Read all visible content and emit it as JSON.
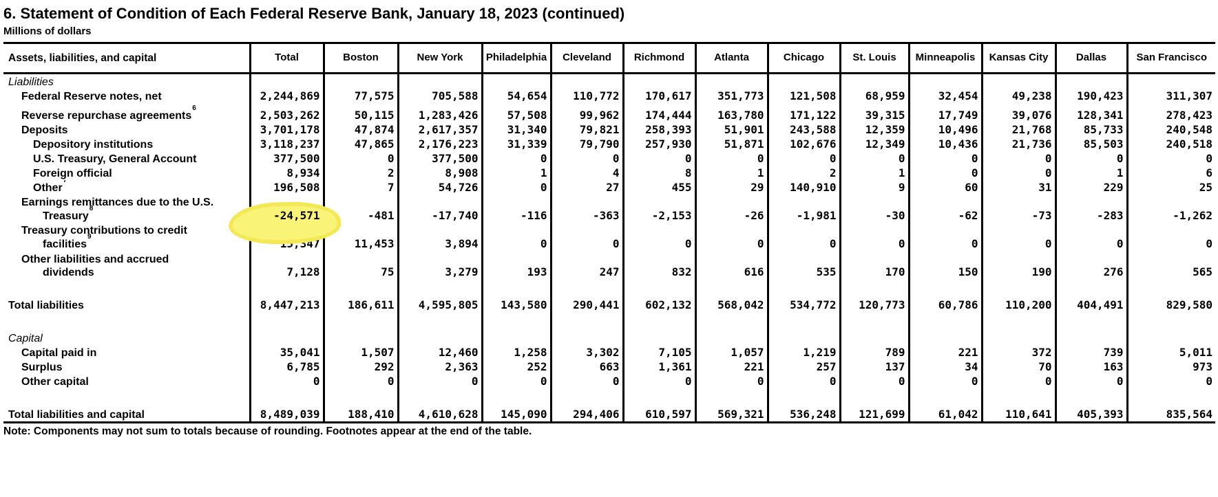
{
  "title": "6. Statement of Condition of Each Federal Reserve Bank, January 18, 2023 (continued)",
  "subtitle": "Millions of dollars",
  "note": "Note: Components may not sum to totals because of rounding. Footnotes appear at the end of the table.",
  "highlight": {
    "color": "#f9f478",
    "description": "hand-drawn yellow marker circle around the Total value of the Earnings remittances row",
    "highlighted_value": "-24,571",
    "row": "Earnings remittances due to the U.S. Treasury",
    "column": "Total"
  },
  "table": {
    "stub_header": "Assets, liabilities, and capital",
    "columns": [
      "Total",
      "Boston",
      "New York",
      "Philadelphia",
      "Cleveland",
      "Richmond",
      "Atlanta",
      "Chicago",
      "St. Louis",
      "Minneapolis",
      "Kansas City",
      "Dallas",
      "San Francisco"
    ],
    "rows": [
      {
        "type": "section",
        "label": "Liabilities"
      },
      {
        "type": "row",
        "indent": 1,
        "label": "Federal Reserve notes, net",
        "values": [
          "2,244,869",
          "77,575",
          "705,588",
          "54,654",
          "110,772",
          "170,617",
          "351,773",
          "121,508",
          "68,959",
          "32,454",
          "49,238",
          "190,423",
          "311,307"
        ]
      },
      {
        "type": "row",
        "indent": 1,
        "tall": true,
        "label": "Reverse repurchase agreements",
        "sup": "6",
        "values": [
          "2,503,262",
          "50,115",
          "1,283,426",
          "57,508",
          "99,962",
          "174,444",
          "163,780",
          "171,122",
          "39,315",
          "17,749",
          "39,076",
          "128,341",
          "278,423"
        ]
      },
      {
        "type": "row",
        "indent": 1,
        "label": "Deposits",
        "values": [
          "3,701,178",
          "47,874",
          "2,617,357",
          "31,340",
          "79,821",
          "258,393",
          "51,901",
          "243,588",
          "12,359",
          "10,496",
          "21,768",
          "85,733",
          "240,548"
        ]
      },
      {
        "type": "row",
        "indent": 2,
        "label": "Depository institutions",
        "values": [
          "3,118,237",
          "47,865",
          "2,176,223",
          "31,339",
          "79,790",
          "257,930",
          "51,871",
          "102,676",
          "12,349",
          "10,436",
          "21,736",
          "85,503",
          "240,518"
        ]
      },
      {
        "type": "row",
        "indent": 2,
        "label": "U.S. Treasury, General Account",
        "values": [
          "377,500",
          "0",
          "377,500",
          "0",
          "0",
          "0",
          "0",
          "0",
          "0",
          "0",
          "0",
          "0",
          "0"
        ]
      },
      {
        "type": "row",
        "indent": 2,
        "label": "Foreign official",
        "values": [
          "8,934",
          "2",
          "8,908",
          "1",
          "4",
          "8",
          "1",
          "2",
          "1",
          "0",
          "0",
          "1",
          "6"
        ]
      },
      {
        "type": "row",
        "indent": 2,
        "label": "Other",
        "sup": "7",
        "values": [
          "196,508",
          "7",
          "54,726",
          "0",
          "27",
          "455",
          "29",
          "140,910",
          "9",
          "60",
          "31",
          "229",
          "25"
        ]
      },
      {
        "type": "row2",
        "indent": 1,
        "label": "Earnings remittances due to the U.S.",
        "label2": "Treasury",
        "sup2": "8",
        "highlight": 0,
        "values": [
          "-24,571",
          "-481",
          "-17,740",
          "-116",
          "-363",
          "-2,153",
          "-26",
          "-1,981",
          "-30",
          "-62",
          "-73",
          "-283",
          "-1,262"
        ]
      },
      {
        "type": "row2",
        "indent": 1,
        "label": "Treasury contributions to credit",
        "label2": "facilities",
        "sup2": "9",
        "values": [
          "15,347",
          "11,453",
          "3,894",
          "0",
          "0",
          "0",
          "0",
          "0",
          "0",
          "0",
          "0",
          "0",
          "0"
        ]
      },
      {
        "type": "row2",
        "indent": 1,
        "label": "Other liabilities and accrued",
        "label2": "dividends",
        "values": [
          "7,128",
          "75",
          "3,279",
          "193",
          "247",
          "832",
          "616",
          "535",
          "170",
          "150",
          "190",
          "276",
          "565"
        ]
      },
      {
        "type": "spacer"
      },
      {
        "type": "row",
        "indent": 0,
        "label": "Total liabilities",
        "values": [
          "8,447,213",
          "186,611",
          "4,595,805",
          "143,580",
          "290,441",
          "602,132",
          "568,042",
          "534,772",
          "120,773",
          "60,786",
          "110,200",
          "404,491",
          "829,580"
        ]
      },
      {
        "type": "spacer"
      },
      {
        "type": "section",
        "label": "Capital"
      },
      {
        "type": "row",
        "indent": 1,
        "label": "Capital paid in",
        "values": [
          "35,041",
          "1,507",
          "12,460",
          "1,258",
          "3,302",
          "7,105",
          "1,057",
          "1,219",
          "789",
          "221",
          "372",
          "739",
          "5,011"
        ]
      },
      {
        "type": "row",
        "indent": 1,
        "label": "Surplus",
        "values": [
          "6,785",
          "292",
          "2,363",
          "252",
          "663",
          "1,361",
          "221",
          "257",
          "137",
          "34",
          "70",
          "163",
          "973"
        ]
      },
      {
        "type": "row",
        "indent": 1,
        "label": "Other capital",
        "values": [
          "0",
          "0",
          "0",
          "0",
          "0",
          "0",
          "0",
          "0",
          "0",
          "0",
          "0",
          "0",
          "0"
        ]
      },
      {
        "type": "spacer"
      },
      {
        "type": "row",
        "indent": 0,
        "label": "Total liabilities and capital",
        "values": [
          "8,489,039",
          "188,410",
          "4,610,628",
          "145,090",
          "294,406",
          "610,597",
          "569,321",
          "536,248",
          "121,699",
          "61,042",
          "110,641",
          "405,393",
          "835,564"
        ]
      }
    ]
  }
}
